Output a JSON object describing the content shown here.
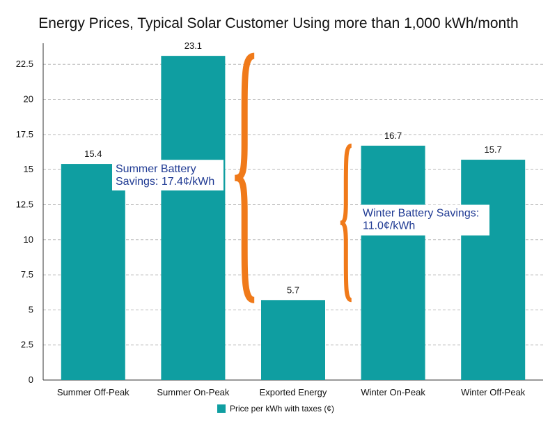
{
  "chart_data": {
    "type": "bar",
    "title": "Energy Prices, Typical Solar Customer Using more than 1,000 kWh/month",
    "xlabel": "",
    "ylabel": "",
    "categories": [
      "Summer Off-Peak",
      "Summer On-Peak",
      "Exported Energy",
      "Winter On-Peak",
      "Winter Off-Peak"
    ],
    "series": [
      {
        "name": "Price per kWh with taxes (¢)",
        "values": [
          15.4,
          23.1,
          5.7,
          16.7,
          15.7
        ],
        "color": "#0f9ea1"
      }
    ],
    "data_labels": [
      "15.4",
      "23.1",
      "5.7",
      "16.7",
      "15.7"
    ],
    "ylim": [
      0,
      24
    ],
    "yticks": [
      0,
      2.5,
      5,
      7.5,
      10,
      12.5,
      15,
      17.5,
      20,
      22.5
    ],
    "ytick_labels": [
      "0",
      "2.5",
      "5",
      "7.5",
      "10",
      "12.5",
      "15",
      "17.5",
      "20",
      "22.5"
    ],
    "grid": true,
    "legend_position": "bottom",
    "annotations": [
      {
        "lines": [
          "Summer Battery",
          "Savings: 17.4¢/kWh"
        ],
        "from_value": 23.1,
        "to_value": 5.7,
        "brace_color": "#f07a1a"
      },
      {
        "lines": [
          "Winter Battery Savings:",
          "11.0¢/kWh"
        ],
        "from_value": 16.7,
        "to_value": 5.7,
        "brace_color": "#f07a1a"
      }
    ],
    "colors": {
      "bar": "#0f9ea1",
      "brace": "#f07a1a",
      "annotation_text": "#1f3a93",
      "grid": "#bbbbbb",
      "axis": "#333333"
    }
  }
}
